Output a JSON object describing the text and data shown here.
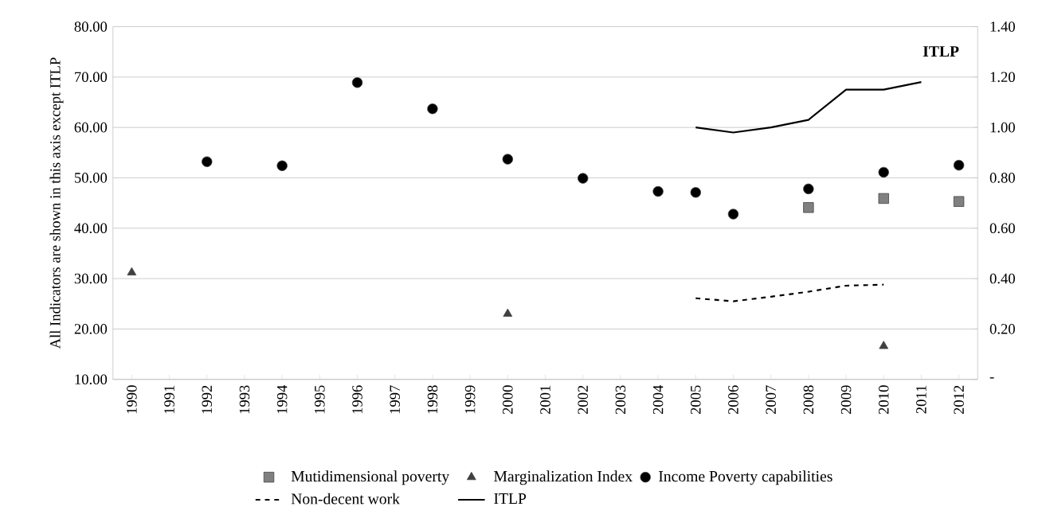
{
  "chart_data": {
    "type": "scatter",
    "ylabel": "All Indicators are shown in this axis except ITLP",
    "annotations": [
      "ITLP"
    ],
    "categories": [
      "1990",
      "1991",
      "1992",
      "1993",
      "1994",
      "1995",
      "1996",
      "1997",
      "1998",
      "1999",
      "2000",
      "2001",
      "2002",
      "2003",
      "2004",
      "2005",
      "2006",
      "2007",
      "2008",
      "2009",
      "2010",
      "2011",
      "2012"
    ],
    "series": [
      {
        "name": "Mutidimensional poverty",
        "marker": "square",
        "color": "#808080",
        "values": [
          null,
          null,
          null,
          null,
          null,
          null,
          null,
          null,
          null,
          null,
          null,
          null,
          null,
          null,
          null,
          null,
          null,
          null,
          44.1,
          null,
          45.9,
          null,
          45.3
        ]
      },
      {
        "name": "Marginalization Index",
        "marker": "triangle",
        "color": "#404040",
        "values": [
          31.2,
          null,
          null,
          null,
          null,
          null,
          null,
          null,
          null,
          null,
          23.0,
          null,
          null,
          null,
          null,
          null,
          null,
          null,
          null,
          null,
          16.6,
          null,
          null
        ]
      },
      {
        "name": "Income Poverty capabilities",
        "marker": "circle",
        "color": "#000000",
        "values": [
          null,
          null,
          53.2,
          null,
          52.4,
          null,
          68.9,
          null,
          63.7,
          null,
          53.7,
          null,
          49.9,
          null,
          47.3,
          47.1,
          42.8,
          null,
          47.8,
          null,
          51.1,
          null,
          52.5
        ]
      },
      {
        "name": "Non-decent work",
        "type": "line",
        "line_style": "dashed",
        "color": "#000000",
        "values": [
          null,
          null,
          null,
          null,
          null,
          null,
          null,
          null,
          null,
          null,
          null,
          null,
          null,
          null,
          null,
          26.1,
          25.5,
          26.4,
          27.4,
          28.6,
          28.8,
          null,
          null
        ]
      },
      {
        "name": "ITLP",
        "type": "line",
        "line_style": "solid",
        "axis": "y2",
        "color": "#000000",
        "values": [
          null,
          null,
          null,
          null,
          null,
          null,
          null,
          null,
          null,
          null,
          null,
          null,
          null,
          null,
          null,
          1.0,
          0.98,
          1.0,
          1.03,
          1.15,
          1.15,
          1.18,
          null
        ]
      }
    ],
    "ylim": [
      10,
      80
    ],
    "yticks": [
      {
        "value": 10,
        "label": "10.00"
      },
      {
        "value": 20,
        "label": "20.00"
      },
      {
        "value": 30,
        "label": "30.00"
      },
      {
        "value": 40,
        "label": "40.00"
      },
      {
        "value": 50,
        "label": "50.00"
      },
      {
        "value": 60,
        "label": "60.00"
      },
      {
        "value": 70,
        "label": "70.00"
      },
      {
        "value": 80,
        "label": "80.00"
      }
    ],
    "y2lim": [
      0,
      1.4
    ],
    "y2ticks": [
      {
        "value": 0,
        "label": "-"
      },
      {
        "value": 0.2,
        "label": "0.20"
      },
      {
        "value": 0.4,
        "label": "0.40"
      },
      {
        "value": 0.6,
        "label": "0.60"
      },
      {
        "value": 0.8,
        "label": "0.80"
      },
      {
        "value": 1.0,
        "label": "1.00"
      },
      {
        "value": 1.2,
        "label": "1.20"
      },
      {
        "value": 1.4,
        "label": "1.40"
      }
    ],
    "grid": "y",
    "legend": "bottom"
  }
}
